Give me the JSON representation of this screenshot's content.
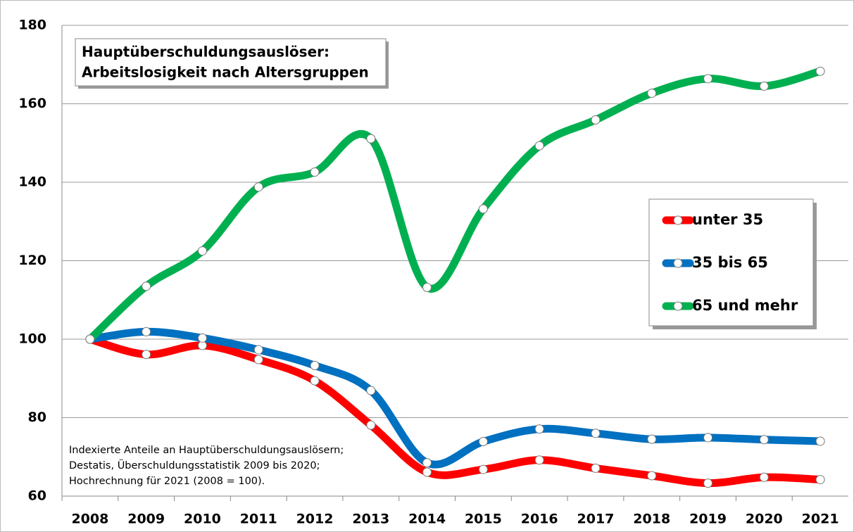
{
  "chart_data": {
    "type": "line",
    "title": "Hauptüberschuldungsauslöser:\nArbeitslosigkeit nach Altersgruppen",
    "note": [
      "Indexierte Anteile an Hauptüberschuldungsauslösern;",
      "Destatis, Überschuldungsstatistik 2009 bis 2020;",
      "Hochrechnung für 2021 (2008 = 100)."
    ],
    "categories": [
      "2008",
      "2009",
      "2010",
      "2011",
      "2012",
      "2013",
      "2014",
      "2015",
      "2016",
      "2017",
      "2018",
      "2019",
      "2020",
      "2021"
    ],
    "series": [
      {
        "name": "unter 35",
        "color": "#ff0000",
        "values": [
          100,
          96.1,
          98.4,
          94.8,
          89.4,
          78.1,
          66.1,
          66.8,
          69.2,
          67.1,
          65.2,
          63.3,
          64.8,
          64.2
        ]
      },
      {
        "name": "35 bis 65",
        "color": "#0070c0",
        "values": [
          100,
          101.9,
          100.3,
          97.3,
          93.3,
          86.9,
          68.5,
          73.9,
          77.1,
          76.0,
          74.5,
          74.9,
          74.4,
          74.0
        ]
      },
      {
        "name": "65 und mehr",
        "color": "#00b050",
        "values": [
          100,
          113.5,
          122.5,
          138.8,
          142.6,
          151.1,
          113.2,
          133.2,
          149.3,
          155.9,
          162.7,
          166.4,
          164.5,
          168.3
        ]
      }
    ],
    "ylim": [
      60,
      180
    ],
    "yticks": [
      60,
      80,
      100,
      120,
      140,
      160,
      180
    ],
    "grid": true,
    "smooth": true,
    "legend": "right"
  }
}
